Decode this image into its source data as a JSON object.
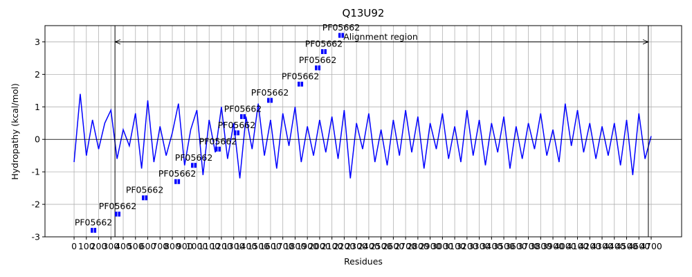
{
  "chart_data": {
    "type": "line",
    "title": "Q13U92",
    "x_label": "Residues",
    "y_label": "Hydropathy (kcal/mol)",
    "x": [
      0,
      50,
      100,
      150,
      200,
      250,
      300,
      350,
      400,
      450,
      500,
      550,
      600,
      650,
      700,
      750,
      800,
      850,
      900,
      950,
      1000,
      1050,
      1100,
      1150,
      1200,
      1250,
      1300,
      1350,
      1400,
      1450,
      1500,
      1550,
      1600,
      1650,
      1700,
      1750,
      1800,
      1850,
      1900,
      1950,
      2000,
      2050,
      2100,
      2150,
      2200,
      2250,
      2300,
      2350,
      2400,
      2450,
      2500,
      2550,
      2600,
      2650,
      2700,
      2750,
      2800,
      2850,
      2900,
      2950,
      3000,
      3050,
      3100,
      3150,
      3200,
      3250,
      3300,
      3350,
      3400,
      3450,
      3500,
      3550,
      3600,
      3650,
      3700,
      3750,
      3800,
      3850,
      3900,
      3950,
      4000,
      4050,
      4100,
      4150,
      4200,
      4250,
      4300,
      4350,
      4400,
      4450,
      4500,
      4550,
      4600,
      4650,
      4700
    ],
    "series": [
      {
        "name": "Hydropathy",
        "color": "#0000ff",
        "values": [
          -0.7,
          1.4,
          -0.5,
          0.6,
          -0.3,
          0.5,
          0.9,
          -0.6,
          0.3,
          -0.2,
          0.8,
          -0.9,
          1.2,
          -0.7,
          0.4,
          -0.5,
          0.2,
          1.1,
          -0.8,
          0.3,
          0.9,
          -1.1,
          0.6,
          -0.4,
          1.0,
          -0.6,
          0.5,
          -1.2,
          0.7,
          -0.3,
          1.1,
          -0.5,
          0.6,
          -0.9,
          0.8,
          -0.2,
          1.0,
          -0.7,
          0.4,
          -0.5,
          0.6,
          -0.4,
          0.7,
          -0.6,
          0.9,
          -1.2,
          0.5,
          -0.3,
          0.8,
          -0.7,
          0.3,
          -0.8,
          0.6,
          -0.5,
          0.9,
          -0.4,
          0.7,
          -0.9,
          0.5,
          -0.3,
          0.8,
          -0.6,
          0.4,
          -0.7,
          0.9,
          -0.5,
          0.6,
          -0.8,
          0.5,
          -0.4,
          0.7,
          -0.9,
          0.4,
          -0.6,
          0.5,
          -0.3,
          0.8,
          -0.5,
          0.3,
          -0.7,
          1.1,
          -0.2,
          0.9,
          -0.4,
          0.5,
          -0.6,
          0.4,
          -0.5,
          0.5,
          -0.8,
          0.6,
          -1.1,
          0.8,
          -0.6,
          0.1
        ]
      }
    ],
    "domains": [
      {
        "label": "PF05662",
        "x": 158,
        "y": -2.8
      },
      {
        "label": "PF05662",
        "x": 355,
        "y": -2.3
      },
      {
        "label": "PF05662",
        "x": 575,
        "y": -1.8
      },
      {
        "label": "PF05662",
        "x": 840,
        "y": -1.3
      },
      {
        "label": "PF05662",
        "x": 975,
        "y": -0.8
      },
      {
        "label": "PF05662",
        "x": 1172,
        "y": -0.3
      },
      {
        "label": "PF05662",
        "x": 1324,
        "y": 0.2
      },
      {
        "label": "PF05662",
        "x": 1375,
        "y": 0.7
      },
      {
        "label": "PF05662",
        "x": 1595,
        "y": 1.2
      },
      {
        "label": "PF05662",
        "x": 1843,
        "y": 1.7
      },
      {
        "label": "PF05662",
        "x": 1984,
        "y": 2.2
      },
      {
        "label": "PF05662",
        "x": 2034,
        "y": 2.7
      },
      {
        "label": "PF05662",
        "x": 2175,
        "y": 3.2
      }
    ],
    "domain_color": "#0000ff",
    "alignment_region": {
      "label": "Alignment region",
      "start": 333,
      "end": 4677,
      "y": 3
    },
    "xlim": [
      -237,
      4948
    ],
    "ylim": [
      -3,
      3.5
    ],
    "xticks": [
      0,
      100,
      200,
      300,
      400,
      500,
      600,
      700,
      800,
      900,
      1000,
      1100,
      1200,
      1300,
      1400,
      1500,
      1600,
      1700,
      1800,
      1900,
      2000,
      2100,
      2200,
      2300,
      2400,
      2500,
      2600,
      2700,
      2800,
      2900,
      3000,
      3100,
      3200,
      3300,
      3400,
      3500,
      3600,
      3700,
      3800,
      3900,
      4000,
      4100,
      4200,
      4300,
      4400,
      4500,
      4600,
      4700
    ],
    "yticks": [
      -3,
      -2,
      -1,
      0,
      1,
      2,
      3
    ],
    "grid": true
  }
}
